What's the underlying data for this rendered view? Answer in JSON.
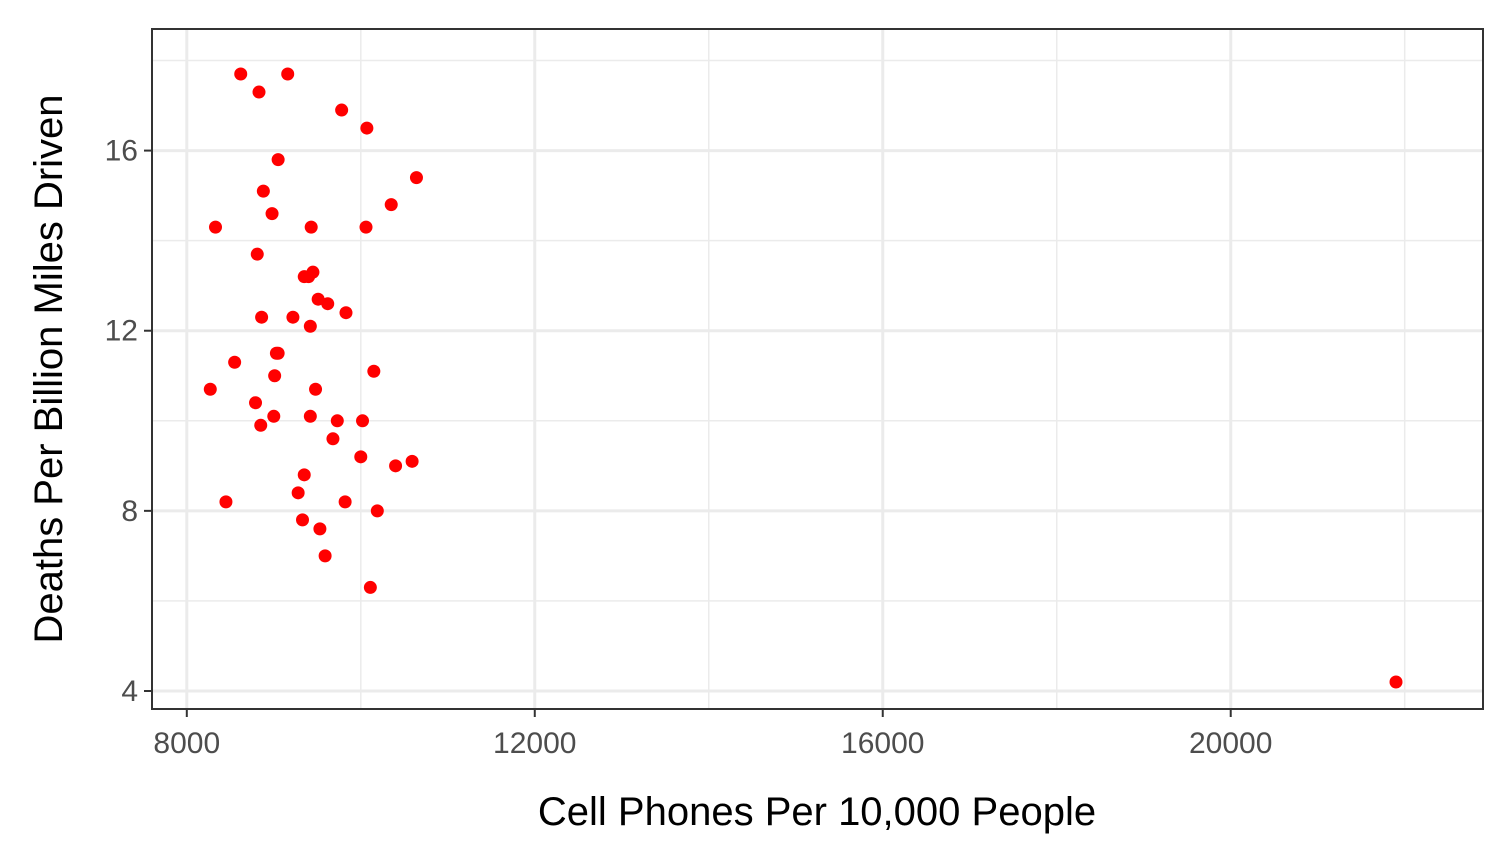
{
  "chart_data": {
    "type": "scatter",
    "title": "",
    "xlabel": "Cell Phones Per 10,000 People",
    "ylabel": "Deaths Per Billion Miles Driven",
    "xlim": [
      7600,
      22900
    ],
    "ylim": [
      3.6,
      18.7
    ],
    "x_ticks": [
      8000,
      12000,
      16000,
      20000
    ],
    "x_tick_labels": [
      "8000",
      "12000",
      "16000",
      "20000"
    ],
    "x_minor_ticks": [
      10000,
      14000,
      18000,
      22000
    ],
    "y_ticks": [
      4,
      8,
      12,
      16
    ],
    "y_tick_labels": [
      "4",
      "8",
      "12",
      "16"
    ],
    "y_minor_ticks": [
      6,
      10,
      14,
      18
    ],
    "grid": true,
    "theme": "bw",
    "point_color": "#ff0000",
    "series": [
      {
        "points": [
          [
            8620,
            17.7
          ],
          [
            9160,
            17.7
          ],
          [
            8830,
            17.3
          ],
          [
            9780,
            16.9
          ],
          [
            10070,
            16.5
          ],
          [
            9050,
            15.8
          ],
          [
            10640,
            15.4
          ],
          [
            8880,
            15.1
          ],
          [
            10350,
            14.8
          ],
          [
            8980,
            14.6
          ],
          [
            8330,
            14.3
          ],
          [
            9430,
            14.3
          ],
          [
            10060,
            14.3
          ],
          [
            8810,
            13.7
          ],
          [
            9350,
            13.2
          ],
          [
            9400,
            13.2
          ],
          [
            9450,
            13.3
          ],
          [
            9510,
            12.7
          ],
          [
            9620,
            12.6
          ],
          [
            9830,
            12.4
          ],
          [
            8860,
            12.3
          ],
          [
            9220,
            12.3
          ],
          [
            9420,
            12.1
          ],
          [
            9030,
            11.5
          ],
          [
            9050,
            11.5
          ],
          [
            8550,
            11.3
          ],
          [
            10150,
            11.1
          ],
          [
            9010,
            11.0
          ],
          [
            8270,
            10.7
          ],
          [
            9480,
            10.7
          ],
          [
            8790,
            10.4
          ],
          [
            9000,
            10.1
          ],
          [
            9420,
            10.1
          ],
          [
            9730,
            10.0
          ],
          [
            10020,
            10.0
          ],
          [
            8850,
            9.9
          ],
          [
            9680,
            9.6
          ],
          [
            10000,
            9.2
          ],
          [
            10590,
            9.1
          ],
          [
            10400,
            9.0
          ],
          [
            9350,
            8.8
          ],
          [
            9280,
            8.4
          ],
          [
            8450,
            8.2
          ],
          [
            9820,
            8.2
          ],
          [
            10190,
            8.0
          ],
          [
            9330,
            7.8
          ],
          [
            9530,
            7.6
          ],
          [
            9590,
            7.0
          ],
          [
            10110,
            6.3
          ],
          [
            21900,
            4.2
          ]
        ]
      }
    ]
  }
}
